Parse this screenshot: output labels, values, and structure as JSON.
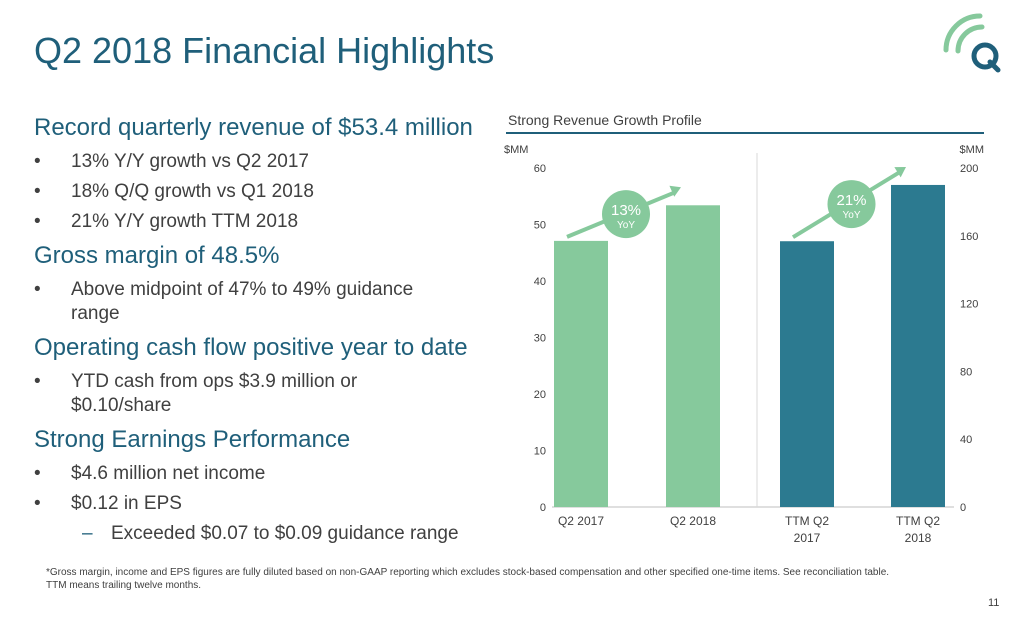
{
  "title": "Q2 2018 Financial Highlights",
  "colors": {
    "brand": "#1f5f7a",
    "bar_light": "#86c99c",
    "bar_dark": "#2c7a90",
    "logo_arc": "#86c99c"
  },
  "bullets": {
    "sections": [
      {
        "heading": "Record quarterly revenue of $53.4 million",
        "items": [
          {
            "level": 1,
            "lines": [
              "13% Y/Y growth vs Q2 2017"
            ]
          },
          {
            "level": 1,
            "lines": [
              "18% Q/Q growth vs Q1 2018"
            ]
          },
          {
            "level": 1,
            "lines": [
              "21% Y/Y growth TTM 2018"
            ]
          }
        ]
      },
      {
        "heading": "Gross margin of 48.5%",
        "items": [
          {
            "level": 1,
            "lines": [
              "Above midpoint of 47% to 49% guidance",
              "range"
            ]
          }
        ]
      },
      {
        "heading": "Operating cash flow positive year to date",
        "items": [
          {
            "level": 1,
            "lines": [
              "YTD cash from ops $3.9 million or",
              "$0.10/share"
            ]
          }
        ]
      },
      {
        "heading": "Strong Earnings Performance",
        "items": [
          {
            "level": 1,
            "lines": [
              "$4.6 million net income"
            ]
          },
          {
            "level": 1,
            "lines": [
              "$0.12 in EPS"
            ]
          },
          {
            "level": 2,
            "lines": [
              "Exceeded $0.07 to $0.09 guidance range"
            ]
          }
        ]
      }
    ]
  },
  "chart_data": {
    "type": "bar",
    "title": "Strong Revenue Growth Profile",
    "left_axis": {
      "unit": "$MM",
      "range": [
        0,
        60
      ],
      "ticks": [
        "0",
        "10",
        "20",
        "30",
        "40",
        "50",
        "60"
      ]
    },
    "right_axis": {
      "unit": "$MM",
      "range": [
        0,
        200
      ],
      "ticks": [
        "0",
        "40",
        "80",
        "120",
        "160",
        "200"
      ]
    },
    "categories": [
      "Q2 2017",
      "Q2 2018",
      "TTM Q2 2017",
      "TTM Q2 2018"
    ],
    "category_labels": [
      [
        "Q2 2017"
      ],
      [
        "Q2 2018"
      ],
      [
        "TTM Q2",
        "2017"
      ],
      [
        "TTM Q2",
        "2018"
      ]
    ],
    "bars": [
      {
        "category": "Q2 2017",
        "value": 47.1,
        "axis": "left",
        "color": "light"
      },
      {
        "category": "Q2 2018",
        "value": 53.4,
        "axis": "left",
        "color": "light"
      },
      {
        "category": "TTM Q2 2017",
        "value": 156.8,
        "axis": "right",
        "color": "dark"
      },
      {
        "category": "TTM Q2 2018",
        "value": 190,
        "axis": "right",
        "color": "dark"
      }
    ],
    "annotations": [
      {
        "pct": "13%",
        "sub": "YoY",
        "group": "quarterly"
      },
      {
        "pct": "21%",
        "sub": "YoY",
        "group": "ttm"
      }
    ],
    "grid": false,
    "legend": "none"
  },
  "footnote": {
    "lines": [
      "*Gross margin, income and EPS figures are fully diluted based on non-GAAP reporting which excludes stock-based compensation and other specified one-time items. See reconciliation table.",
      "TTM means trailing twelve months."
    ]
  },
  "page_number": "11"
}
